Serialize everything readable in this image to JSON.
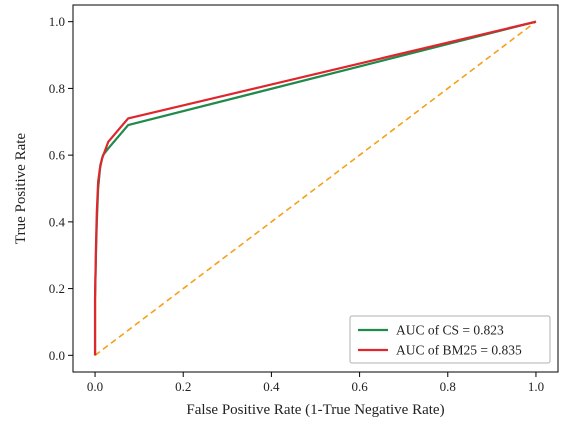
{
  "chart_data": {
    "type": "line",
    "title": "",
    "xlabel": "False Positive Rate (1-True Negative Rate)",
    "ylabel": "True Positive Rate",
    "xlim": [
      -0.05,
      1.05
    ],
    "ylim": [
      -0.05,
      1.05
    ],
    "xticks": [
      0.0,
      0.2,
      0.4,
      0.6,
      0.8,
      1.0
    ],
    "xtick_labels": [
      "0.0",
      "0.2",
      "0.4",
      "0.6",
      "0.8",
      "1.0"
    ],
    "yticks": [
      0.0,
      0.2,
      0.4,
      0.6,
      0.8,
      1.0
    ],
    "ytick_labels": [
      "0.0",
      "0.2",
      "0.4",
      "0.6",
      "0.8",
      "1.0"
    ],
    "grid": false,
    "legend": "lower-right",
    "series": [
      {
        "name": "AUC of CS = 0.823",
        "color": "#1f8a4c",
        "x": [
          0.0,
          0.0,
          0.002,
          0.004,
          0.007,
          0.012,
          0.018,
          0.03,
          0.075,
          1.0
        ],
        "y": [
          0.0,
          0.17,
          0.3,
          0.4,
          0.5,
          0.57,
          0.6,
          0.62,
          0.69,
          1.0
        ]
      },
      {
        "name": "AUC of BM25 = 0.835",
        "color": "#e0262d",
        "x": [
          0.0,
          0.0,
          0.002,
          0.004,
          0.007,
          0.011,
          0.016,
          0.03,
          0.075,
          1.0
        ],
        "y": [
          0.0,
          0.17,
          0.32,
          0.43,
          0.52,
          0.56,
          0.59,
          0.64,
          0.71,
          1.0
        ]
      },
      {
        "name": "",
        "color": "#f5a01a",
        "style": "dashed",
        "x": [
          0.0,
          1.0
        ],
        "y": [
          0.0,
          1.0
        ]
      }
    ]
  }
}
